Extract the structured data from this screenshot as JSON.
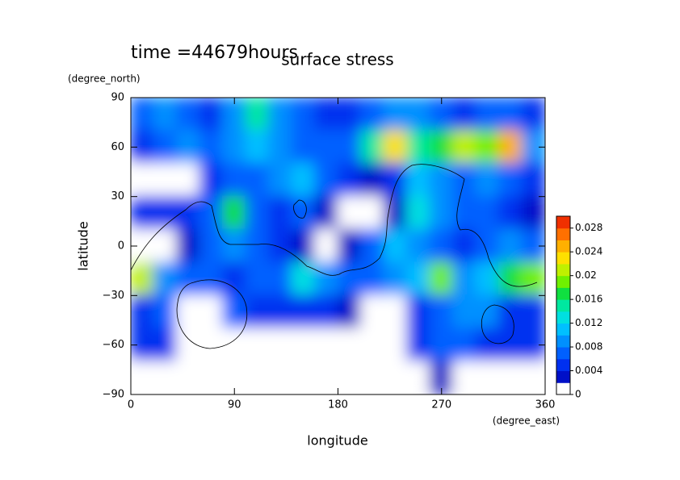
{
  "chart_data": {
    "type": "contour",
    "title": "surface stress",
    "subtitle": "time =44679hours",
    "xlabel": "longitude",
    "xunit": "(degree_east)",
    "ylabel": "latitude",
    "yunit": "(degree_north)",
    "xlim": [
      0,
      360
    ],
    "xticks": [
      0,
      90,
      180,
      270,
      360
    ],
    "ylim": [
      -90,
      90
    ],
    "yticks": [
      {
        "value": -90,
        "label": "−90"
      },
      {
        "value": -60,
        "label": "−60"
      },
      {
        "value": -30,
        "label": "−30"
      },
      0,
      30,
      60,
      90
    ],
    "x": [
      10,
      30,
      50,
      70,
      90,
      110,
      130,
      150,
      170,
      190,
      210,
      230,
      250,
      270,
      290,
      310,
      330,
      350
    ],
    "y": [
      80,
      60,
      40,
      20,
      0,
      -20,
      -40,
      -60,
      -80
    ],
    "z": [
      [
        0.006,
        0.008,
        0.006,
        0.005,
        0.008,
        0.014,
        0.008,
        0.006,
        0.004,
        0.004,
        0.006,
        0.008,
        0.008,
        0.006,
        0.005,
        0.006,
        0.006,
        0.004
      ],
      [
        0.004,
        0.006,
        0.008,
        0.006,
        0.008,
        0.01,
        0.008,
        0.006,
        0.006,
        0.006,
        0.014,
        0.022,
        0.014,
        0.016,
        0.02,
        0.018,
        0.024,
        0.008
      ],
      [
        0,
        0,
        0,
        0.004,
        0.006,
        0.006,
        0.008,
        0.01,
        0.006,
        0.004,
        0.002,
        0.004,
        0.01,
        0.008,
        0.006,
        0.008,
        0.006,
        0.004
      ],
      [
        0.004,
        0.004,
        0.004,
        0.006,
        0.016,
        0.006,
        0.004,
        0.006,
        0.002,
        0,
        0,
        0.002,
        0.012,
        0.008,
        0.006,
        0.006,
        0.004,
        0.002
      ],
      [
        0,
        0,
        0.002,
        0.006,
        0.008,
        0.006,
        0.004,
        0.002,
        0,
        0.002,
        0.006,
        0.01,
        0.008,
        0.006,
        0.004,
        0.006,
        0.008,
        0.006
      ],
      [
        0.02,
        0.008,
        0.006,
        0.006,
        0.004,
        0.006,
        0.006,
        0.012,
        0.008,
        0.006,
        0.006,
        0.008,
        0.01,
        0.018,
        0.008,
        0.01,
        0.016,
        0.018
      ],
      [
        0.004,
        0.006,
        0,
        0,
        0.006,
        0.004,
        0.004,
        0.004,
        0.004,
        0.002,
        0,
        0,
        0.004,
        0.006,
        0.008,
        0.008,
        0.004,
        0.004
      ],
      [
        0.004,
        0.004,
        0,
        0,
        0,
        0,
        0,
        0,
        0,
        0,
        0,
        0,
        0.004,
        0.006,
        0.006,
        0.004,
        0.004,
        0.004
      ],
      [
        0,
        0,
        0,
        0,
        0,
        0,
        0,
        0,
        0,
        0,
        0,
        0,
        0,
        0.002,
        0,
        0,
        0,
        0
      ]
    ],
    "zlim": [
      0,
      0.03
    ],
    "zticks": [
      0,
      0.004,
      0.008,
      0.012,
      0.016,
      0.02,
      0.024,
      0.028
    ],
    "colors": [
      "#ffffff",
      "#0010c8",
      "#0030f0",
      "#0060ff",
      "#0090ff",
      "#00c0ff",
      "#00e0e0",
      "#00e8a0",
      "#10e040",
      "#70f000",
      "#c0f000",
      "#ffe000",
      "#ffb000",
      "#ff7000",
      "#f03000"
    ]
  }
}
